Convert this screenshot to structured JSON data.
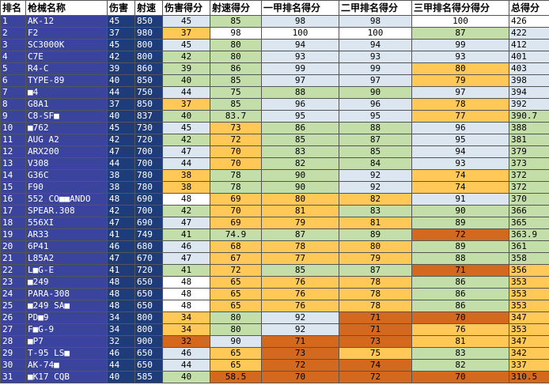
{
  "table": {
    "header": [
      "排名",
      "枪械名称",
      "伤害",
      "射速",
      "伤害得分",
      "射速得分",
      "一甲排名得分",
      "二甲排名得分",
      "三甲排名得分得分",
      "总得分"
    ],
    "rows": [
      [
        1,
        "AK-12",
        45,
        850,
        45,
        85,
        98,
        98,
        100,
        426
      ],
      [
        2,
        "F2",
        37,
        980,
        37,
        98,
        100,
        100,
        87,
        422
      ],
      [
        3,
        "SC3000K",
        45,
        800,
        45,
        80,
        94,
        94,
        99,
        412
      ],
      [
        4,
        "C7E",
        42,
        800,
        42,
        80,
        93,
        93,
        93,
        401
      ],
      [
        5,
        "R4-C",
        39,
        860,
        39,
        86,
        99,
        99,
        80,
        403
      ],
      [
        6,
        "TYPE-89",
        40,
        850,
        40,
        85,
        97,
        97,
        79,
        398
      ],
      [
        7,
        "■4",
        44,
        750,
        44,
        75,
        88,
        90,
        97,
        394
      ],
      [
        8,
        "G8A1",
        37,
        850,
        37,
        85,
        96,
        96,
        78,
        392
      ],
      [
        9,
        "C8-SF■",
        40,
        837,
        40,
        83.7,
        95,
        95,
        77,
        390.7
      ],
      [
        10,
        "■762",
        45,
        730,
        45,
        73,
        86,
        88,
        96,
        388
      ],
      [
        11,
        "AUG A2",
        42,
        720,
        42,
        72,
        85,
        87,
        95,
        381
      ],
      [
        12,
        "ARX200",
        47,
        700,
        47,
        70,
        83,
        85,
        94,
        379
      ],
      [
        13,
        "V308",
        44,
        700,
        44,
        70,
        82,
        84,
        93,
        373
      ],
      [
        14,
        "G36C",
        38,
        780,
        38,
        78,
        90,
        92,
        74,
        372
      ],
      [
        15,
        "F90",
        38,
        780,
        38,
        78,
        90,
        92,
        74,
        372
      ],
      [
        16,
        "552 CO■■ANDO",
        48,
        690,
        48,
        69,
        80,
        82,
        91,
        370
      ],
      [
        17,
        "SPEAR.308",
        42,
        700,
        42,
        70,
        81,
        83,
        90,
        366
      ],
      [
        18,
        "556XI",
        47,
        690,
        47,
        69,
        79,
        81,
        89,
        365
      ],
      [
        19,
        "AR33",
        41,
        749,
        41,
        74.9,
        87,
        89,
        72,
        363.9
      ],
      [
        20,
        "6P41",
        46,
        680,
        46,
        68,
        78,
        80,
        89,
        361
      ],
      [
        21,
        "L85A2",
        47,
        670,
        47,
        67,
        77,
        79,
        88,
        358
      ],
      [
        22,
        "L■G-E",
        41,
        720,
        41,
        72,
        85,
        87,
        71,
        356
      ],
      [
        23,
        "■249",
        48,
        650,
        48,
        65,
        76,
        78,
        86,
        353
      ],
      [
        24,
        "PARA-308",
        48,
        650,
        48,
        65,
        76,
        78,
        86,
        353
      ],
      [
        25,
        "■249 SA■",
        48,
        650,
        48,
        65,
        76,
        78,
        86,
        353
      ],
      [
        26,
        "PD■9",
        34,
        800,
        34,
        80,
        92,
        71,
        70,
        347
      ],
      [
        27,
        "F■G-9",
        34,
        800,
        34,
        80,
        92,
        71,
        76,
        353
      ],
      [
        28,
        "■P7",
        32,
        900,
        32,
        90,
        71,
        73,
        81,
        347
      ],
      [
        29,
        "T-95 LS■",
        46,
        650,
        46,
        65,
        73,
        75,
        83,
        342
      ],
      [
        30,
        "AK-74■",
        44,
        650,
        44,
        65,
        72,
        74,
        82,
        337
      ],
      [
        31,
        "■K17 CQB",
        40,
        585,
        40,
        58.5,
        70,
        72,
        70,
        310.5
      ]
    ]
  }
}
